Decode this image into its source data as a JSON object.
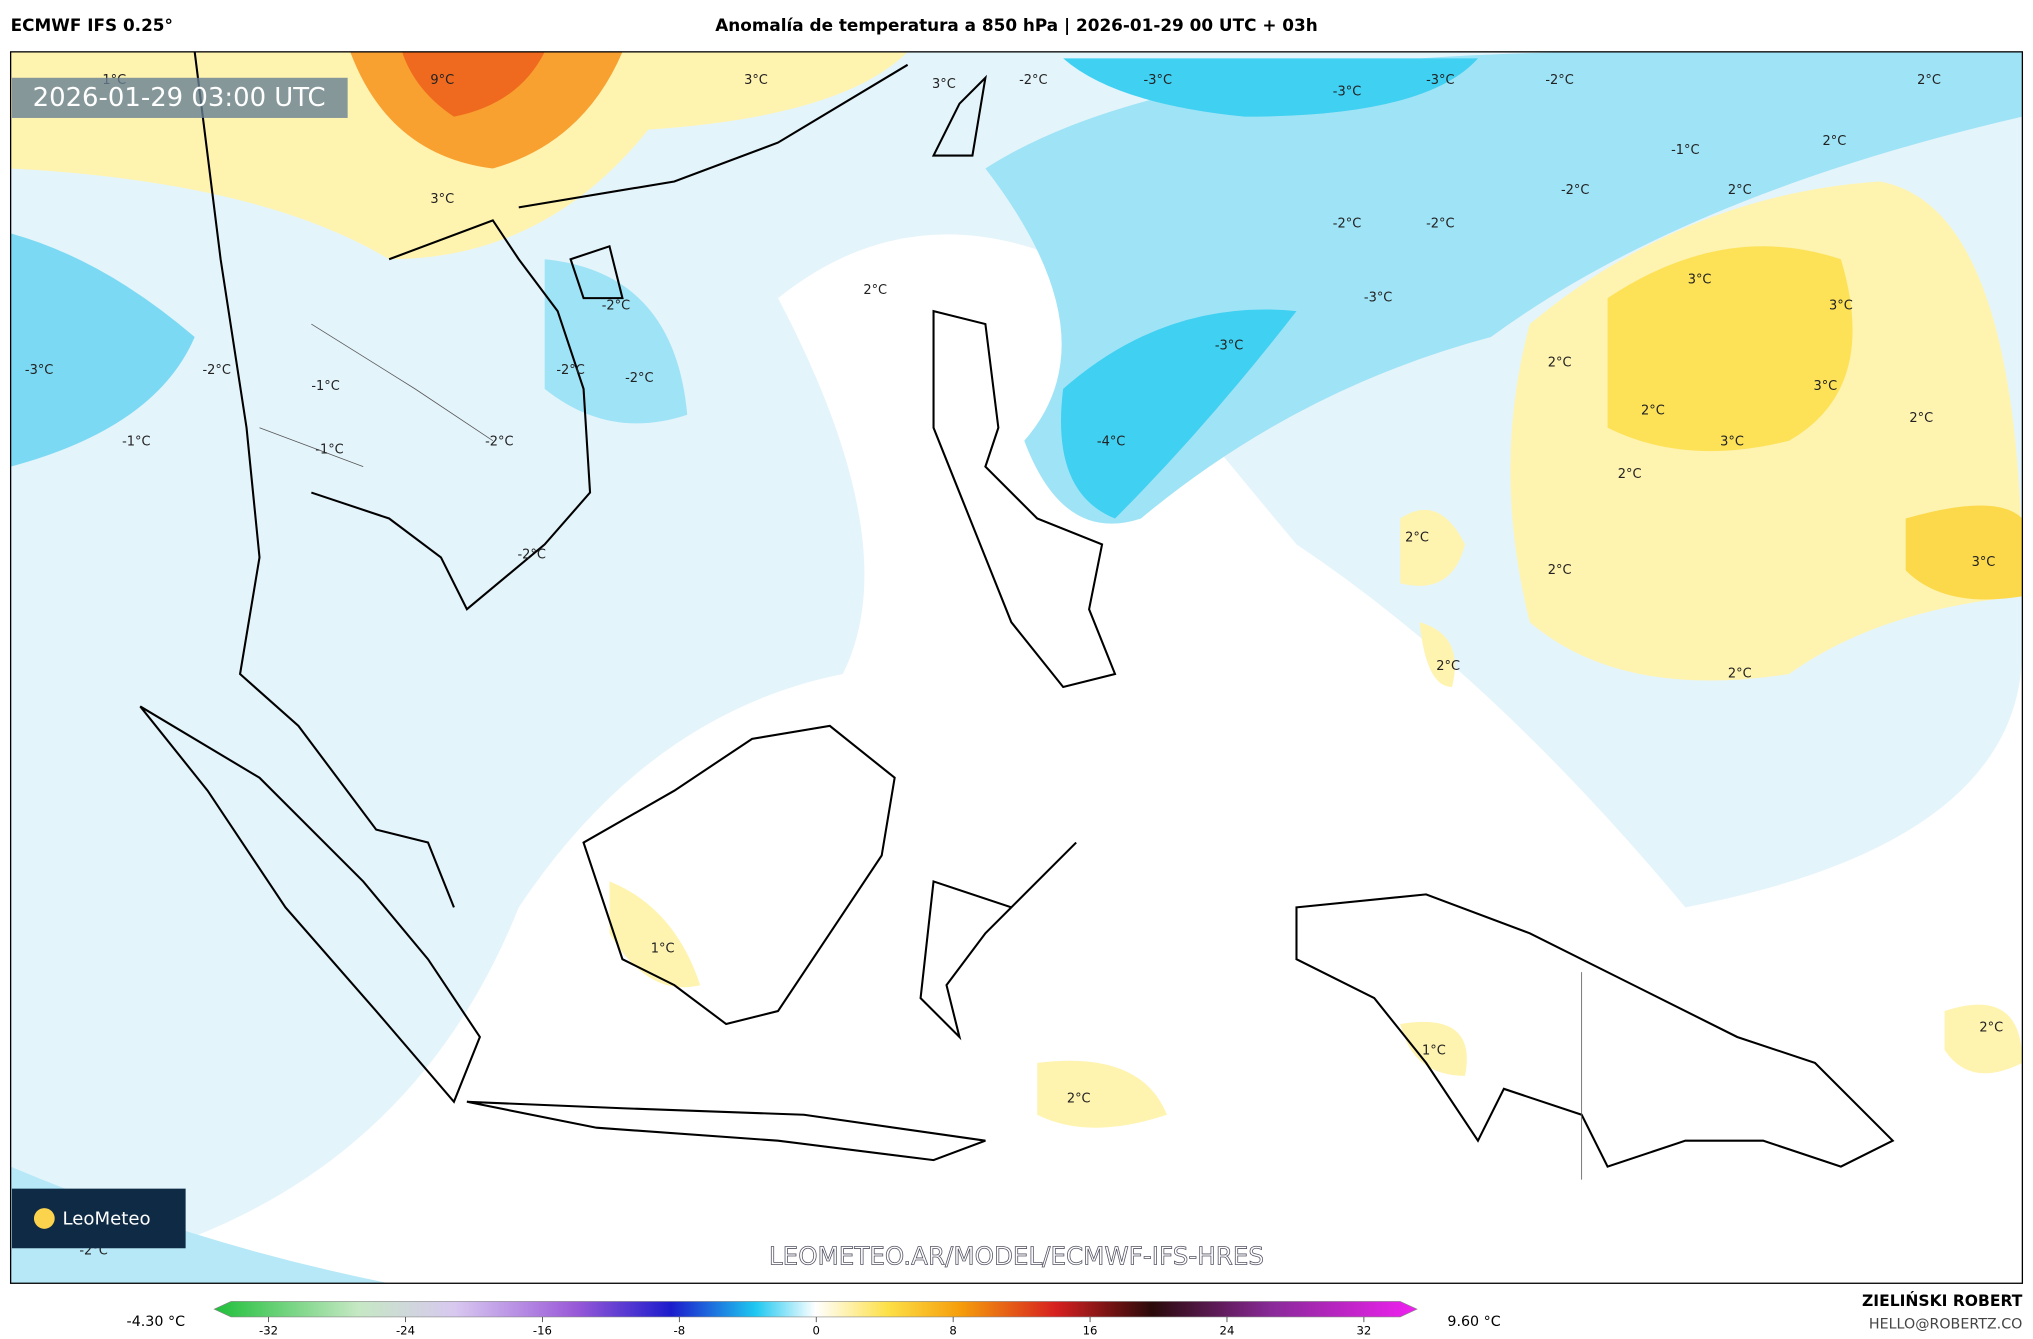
{
  "header": {
    "model": "ECMWF IFS 0.25°",
    "title": "Anomalía de temperatura a 850 hPa | 2026-01-29 00 UTC + 03h"
  },
  "map": {
    "timestamp": "2026-01-29 03:00 UTC",
    "watermark": "LEOMETEO.AR/MODEL/ECMWF-IFS-HRES",
    "logo": "LeoMeteo",
    "labels": [
      "9°C",
      "3°C",
      "3°C",
      "-2°C",
      "-3°C",
      "-3°C",
      "-3°C",
      "-2°C",
      "2°C",
      "1°C",
      "2°C",
      "-1°C",
      "3°C",
      "-2°C",
      "2°C",
      "-2°C",
      "-2°C",
      "2°C",
      "3°C",
      "-2°C",
      "-3°C",
      "3°C",
      "-3°C",
      "-2°C",
      "-1°C",
      "-2°C",
      "-2°C",
      "-3°C",
      "2°C",
      "3°C",
      "-1°C",
      "-1°C",
      "-2°C",
      "-4°C",
      "2°C",
      "3°C",
      "2°C",
      "2°C",
      "2°C",
      "-2°C",
      "2°C",
      "3°C",
      "2°C",
      "2°C",
      "1°C",
      "1°C",
      "2°C",
      "2°C",
      "-2°C"
    ]
  },
  "colorbar": {
    "min_label": "-4.30 °C",
    "max_label": "9.60 °C",
    "ticks": [
      -32,
      -24,
      -16,
      -8,
      0,
      8,
      16,
      24,
      32
    ]
  },
  "credits": {
    "author": "ZIELIŃSKI ROBERT",
    "contact": "HELLO@ROBERTZ.CO"
  }
}
